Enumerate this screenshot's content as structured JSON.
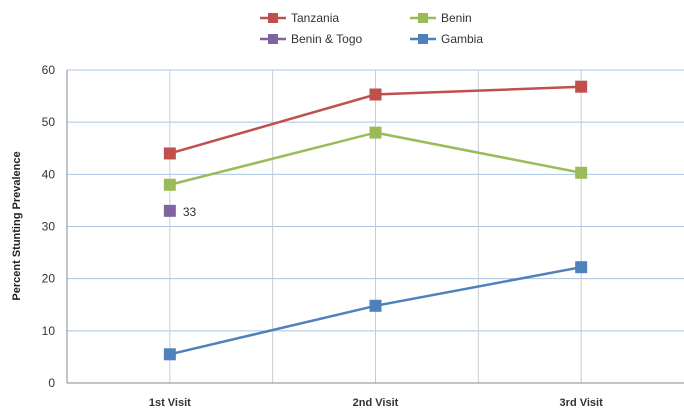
{
  "chart_data": {
    "type": "line",
    "title": "",
    "xlabel": "",
    "ylabel": "Percent Stunting Prevalence",
    "categories": [
      "1st Visit",
      "2nd Visit",
      "3rd Visit"
    ],
    "ylim": [
      0,
      60
    ],
    "yticks": [
      0,
      10,
      20,
      30,
      40,
      50,
      60
    ],
    "grid": "on",
    "legend_position": "top",
    "series": [
      {
        "name": "Tanzania",
        "color": "#c0504d",
        "values": [
          44,
          55.3,
          56.8
        ]
      },
      {
        "name": "Benin",
        "color": "#9bbb59",
        "values": [
          38,
          48,
          40.3
        ]
      },
      {
        "name": "Benin & Togo",
        "color": "#8064a2",
        "values": [
          33,
          null,
          null
        ],
        "data_labels": [
          "33",
          null,
          null
        ]
      },
      {
        "name": "Gambia",
        "color": "#4f81bd",
        "values": [
          5.5,
          14.8,
          22.2
        ]
      }
    ]
  }
}
